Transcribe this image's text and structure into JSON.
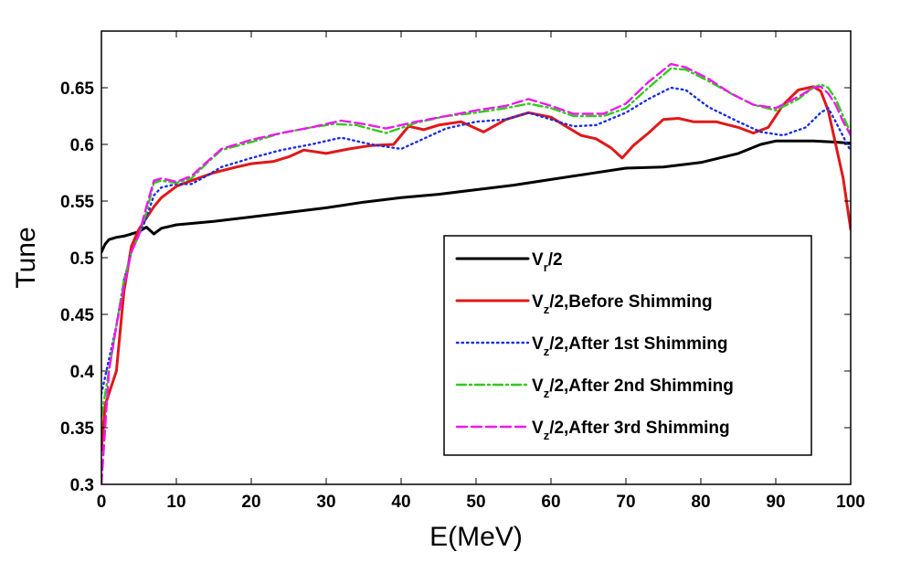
{
  "chart_data": {
    "type": "line",
    "xlabel": "E(MeV)",
    "ylabel": "Tune",
    "xlim": [
      0,
      100
    ],
    "ylim": [
      0.3,
      0.7
    ],
    "xticks": [
      0,
      10,
      20,
      30,
      40,
      50,
      60,
      70,
      80,
      90,
      100
    ],
    "yticks": [
      0.3,
      0.35,
      0.4,
      0.45,
      0.5,
      0.55,
      0.6,
      0.65
    ],
    "ytick_labels": [
      "0.3",
      "0.35",
      "0.4",
      "0.45",
      "0.5",
      "0.55",
      "0.6",
      "0.65"
    ],
    "legend_position": "lower-right",
    "series": [
      {
        "name": "Vr/2",
        "legend_main": "V",
        "legend_sub": "r",
        "legend_rest": "/2",
        "color": "#000000",
        "dash": "solid",
        "points": [
          [
            0,
            0.505
          ],
          [
            0.5,
            0.512
          ],
          [
            1,
            0.516
          ],
          [
            2,
            0.518
          ],
          [
            3,
            0.519
          ],
          [
            4,
            0.521
          ],
          [
            5,
            0.523
          ],
          [
            6,
            0.527
          ],
          [
            7,
            0.521
          ],
          [
            8,
            0.526
          ],
          [
            10,
            0.529
          ],
          [
            15,
            0.532
          ],
          [
            20,
            0.536
          ],
          [
            25,
            0.54
          ],
          [
            30,
            0.544
          ],
          [
            35,
            0.549
          ],
          [
            40,
            0.553
          ],
          [
            45,
            0.556
          ],
          [
            50,
            0.56
          ],
          [
            55,
            0.564
          ],
          [
            60,
            0.569
          ],
          [
            65,
            0.574
          ],
          [
            70,
            0.579
          ],
          [
            75,
            0.58
          ],
          [
            80,
            0.584
          ],
          [
            85,
            0.592
          ],
          [
            88,
            0.6
          ],
          [
            90,
            0.603
          ],
          [
            95,
            0.603
          ],
          [
            98,
            0.602
          ],
          [
            100,
            0.601
          ]
        ]
      },
      {
        "name": "Vz/2,Before Shimming",
        "legend_main": "V",
        "legend_sub": "z",
        "legend_rest": "/2,Before Shimming",
        "color": "#e01818",
        "dash": "solid",
        "points": [
          [
            0,
            0.33
          ],
          [
            0.5,
            0.37
          ],
          [
            1,
            0.38
          ],
          [
            2,
            0.4
          ],
          [
            3,
            0.47
          ],
          [
            4,
            0.51
          ],
          [
            5,
            0.525
          ],
          [
            6,
            0.535
          ],
          [
            7,
            0.545
          ],
          [
            8,
            0.553
          ],
          [
            10,
            0.563
          ],
          [
            12,
            0.568
          ],
          [
            15,
            0.575
          ],
          [
            18,
            0.58
          ],
          [
            20,
            0.583
          ],
          [
            23,
            0.585
          ],
          [
            25,
            0.589
          ],
          [
            27,
            0.595
          ],
          [
            30,
            0.592
          ],
          [
            33,
            0.596
          ],
          [
            36,
            0.599
          ],
          [
            39,
            0.6
          ],
          [
            41,
            0.616
          ],
          [
            43,
            0.613
          ],
          [
            45,
            0.617
          ],
          [
            48,
            0.62
          ],
          [
            51,
            0.611
          ],
          [
            54,
            0.622
          ],
          [
            57,
            0.628
          ],
          [
            60,
            0.624
          ],
          [
            62,
            0.616
          ],
          [
            64,
            0.608
          ],
          [
            66,
            0.605
          ],
          [
            68,
            0.597
          ],
          [
            69.5,
            0.588
          ],
          [
            71,
            0.599
          ],
          [
            73,
            0.61
          ],
          [
            75,
            0.622
          ],
          [
            77,
            0.623
          ],
          [
            79,
            0.62
          ],
          [
            82,
            0.62
          ],
          [
            85,
            0.615
          ],
          [
            87,
            0.61
          ],
          [
            89,
            0.615
          ],
          [
            91,
            0.635
          ],
          [
            93,
            0.648
          ],
          [
            95,
            0.651
          ],
          [
            96,
            0.647
          ],
          [
            97,
            0.63
          ],
          [
            98,
            0.6
          ],
          [
            99,
            0.57
          ],
          [
            100,
            0.525
          ]
        ]
      },
      {
        "name": "Vz/2,After 1st Shimming",
        "legend_main": "V",
        "legend_sub": "z",
        "legend_rest": "/2,After 1st Shimming",
        "color": "#1a2ee6",
        "dash": "dotted",
        "points": [
          [
            0,
            0.38
          ],
          [
            1,
            0.41
          ],
          [
            2,
            0.44
          ],
          [
            3,
            0.48
          ],
          [
            4,
            0.505
          ],
          [
            5,
            0.52
          ],
          [
            6,
            0.535
          ],
          [
            7,
            0.555
          ],
          [
            8,
            0.562
          ],
          [
            10,
            0.565
          ],
          [
            12,
            0.565
          ],
          [
            14,
            0.572
          ],
          [
            16,
            0.58
          ],
          [
            20,
            0.588
          ],
          [
            24,
            0.595
          ],
          [
            28,
            0.6
          ],
          [
            32,
            0.606
          ],
          [
            36,
            0.6
          ],
          [
            40,
            0.596
          ],
          [
            43,
            0.605
          ],
          [
            46,
            0.614
          ],
          [
            50,
            0.62
          ],
          [
            54,
            0.622
          ],
          [
            57,
            0.628
          ],
          [
            60,
            0.622
          ],
          [
            63,
            0.616
          ],
          [
            66,
            0.617
          ],
          [
            70,
            0.628
          ],
          [
            73,
            0.64
          ],
          [
            76,
            0.65
          ],
          [
            78,
            0.648
          ],
          [
            81,
            0.633
          ],
          [
            85,
            0.62
          ],
          [
            88,
            0.611
          ],
          [
            91,
            0.608
          ],
          [
            94,
            0.615
          ],
          [
            96,
            0.628
          ],
          [
            97,
            0.632
          ],
          [
            98,
            0.62
          ],
          [
            100,
            0.594
          ]
        ]
      },
      {
        "name": "Vz/2,After 2nd Shimming",
        "legend_main": "V",
        "legend_sub": "z",
        "legend_rest": "/2,After 2nd Shimming",
        "color": "#2ecc1a",
        "dash": "dashdot",
        "points": [
          [
            0,
            0.36
          ],
          [
            1,
            0.4
          ],
          [
            2,
            0.44
          ],
          [
            3,
            0.48
          ],
          [
            4,
            0.505
          ],
          [
            5,
            0.52
          ],
          [
            6,
            0.54
          ],
          [
            7,
            0.566
          ],
          [
            8,
            0.568
          ],
          [
            10,
            0.566
          ],
          [
            12,
            0.57
          ],
          [
            14,
            0.583
          ],
          [
            16,
            0.595
          ],
          [
            20,
            0.602
          ],
          [
            24,
            0.61
          ],
          [
            28,
            0.615
          ],
          [
            31,
            0.618
          ],
          [
            34,
            0.617
          ],
          [
            38,
            0.61
          ],
          [
            42,
            0.619
          ],
          [
            46,
            0.625
          ],
          [
            50,
            0.628
          ],
          [
            54,
            0.632
          ],
          [
            57,
            0.636
          ],
          [
            60,
            0.632
          ],
          [
            63,
            0.625
          ],
          [
            67,
            0.625
          ],
          [
            70,
            0.632
          ],
          [
            73,
            0.65
          ],
          [
            76,
            0.667
          ],
          [
            78,
            0.666
          ],
          [
            81,
            0.656
          ],
          [
            84,
            0.645
          ],
          [
            87,
            0.635
          ],
          [
            90,
            0.63
          ],
          [
            93,
            0.64
          ],
          [
            95,
            0.65
          ],
          [
            96,
            0.653
          ],
          [
            97,
            0.65
          ],
          [
            98,
            0.64
          ],
          [
            99,
            0.625
          ],
          [
            100,
            0.61
          ]
        ]
      },
      {
        "name": "Vz/2,After 3rd Shimming",
        "legend_main": "V",
        "legend_sub": "z",
        "legend_rest": "/2,After 3rd Shimming",
        "color": "#ee18ee",
        "dash": "dashed",
        "points": [
          [
            0,
            0.3
          ],
          [
            0.5,
            0.35
          ],
          [
            1,
            0.4
          ],
          [
            2,
            0.44
          ],
          [
            3,
            0.475
          ],
          [
            4,
            0.505
          ],
          [
            5,
            0.52
          ],
          [
            6,
            0.545
          ],
          [
            7,
            0.568
          ],
          [
            8,
            0.57
          ],
          [
            10,
            0.567
          ],
          [
            12,
            0.572
          ],
          [
            14,
            0.584
          ],
          [
            16,
            0.596
          ],
          [
            20,
            0.604
          ],
          [
            24,
            0.61
          ],
          [
            28,
            0.615
          ],
          [
            32,
            0.621
          ],
          [
            35,
            0.618
          ],
          [
            38,
            0.614
          ],
          [
            42,
            0.62
          ],
          [
            46,
            0.625
          ],
          [
            50,
            0.63
          ],
          [
            54,
            0.634
          ],
          [
            57,
            0.64
          ],
          [
            60,
            0.634
          ],
          [
            63,
            0.627
          ],
          [
            67,
            0.627
          ],
          [
            70,
            0.636
          ],
          [
            73,
            0.655
          ],
          [
            76,
            0.671
          ],
          [
            78,
            0.668
          ],
          [
            81,
            0.658
          ],
          [
            84,
            0.645
          ],
          [
            87,
            0.635
          ],
          [
            90,
            0.632
          ],
          [
            93,
            0.642
          ],
          [
            95,
            0.65
          ],
          [
            96,
            0.651
          ],
          [
            97,
            0.645
          ],
          [
            98,
            0.635
          ],
          [
            99,
            0.62
          ],
          [
            100,
            0.608
          ]
        ]
      }
    ]
  }
}
